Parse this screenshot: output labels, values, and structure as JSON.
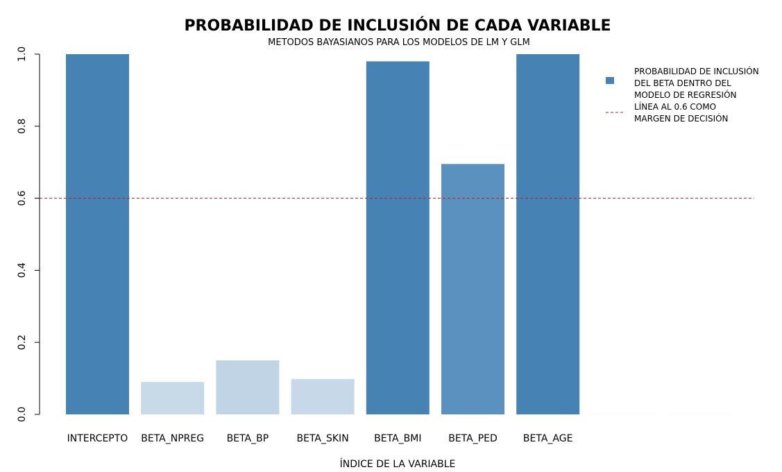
{
  "chart_data": {
    "type": "bar",
    "title": "PROBABILIDAD DE INCLUSIÓN DE CADA VARIABLE",
    "subtitle": "METODOS BAYASIANOS PARA LOS MODELOS DE LM Y GLM",
    "xlabel": "ÍNDICE DE LA VARIABLE",
    "ylabel": "",
    "ylim": [
      0,
      1
    ],
    "yticks": [
      "0.0",
      "0.2",
      "0.4",
      "0.6",
      "0.8",
      "1.0"
    ],
    "categories": [
      "INTERCEPTO",
      "BETA_NPREG",
      "BETA_BP",
      "BETA_SKIN",
      "BETA_BMI",
      "BETA_PED",
      "BETA_AGE",
      "",
      ""
    ],
    "values": [
      1.0,
      0.09,
      0.15,
      0.098,
      0.98,
      0.695,
      1.0,
      0.001,
      0.001
    ],
    "bar_colors": [
      "#4682B4",
      "#C8D9E8",
      "#C0D4E6",
      "#C7D8E8",
      "#4682B4",
      "#5A91BE",
      "#4682B4",
      "#F3F7FA",
      "#F3F7FA"
    ],
    "reference_line": {
      "value": 0.6,
      "color": "#B22222",
      "style": "dashed"
    },
    "legend": {
      "position": "top-right",
      "items": [
        {
          "kind": "box",
          "color": "#4682B4",
          "lines": [
            "PROBABILIDAD DE INCLUSIÓN",
            "DEL BETA DENTRO DEL",
            "MODELO DE REGRESIÓN"
          ]
        },
        {
          "kind": "dash",
          "color": "#B22222",
          "lines": [
            "LÍNEA AL 0.6 COMO",
            "MARGEN DE DECISIÓN"
          ]
        }
      ]
    },
    "grid": false
  }
}
